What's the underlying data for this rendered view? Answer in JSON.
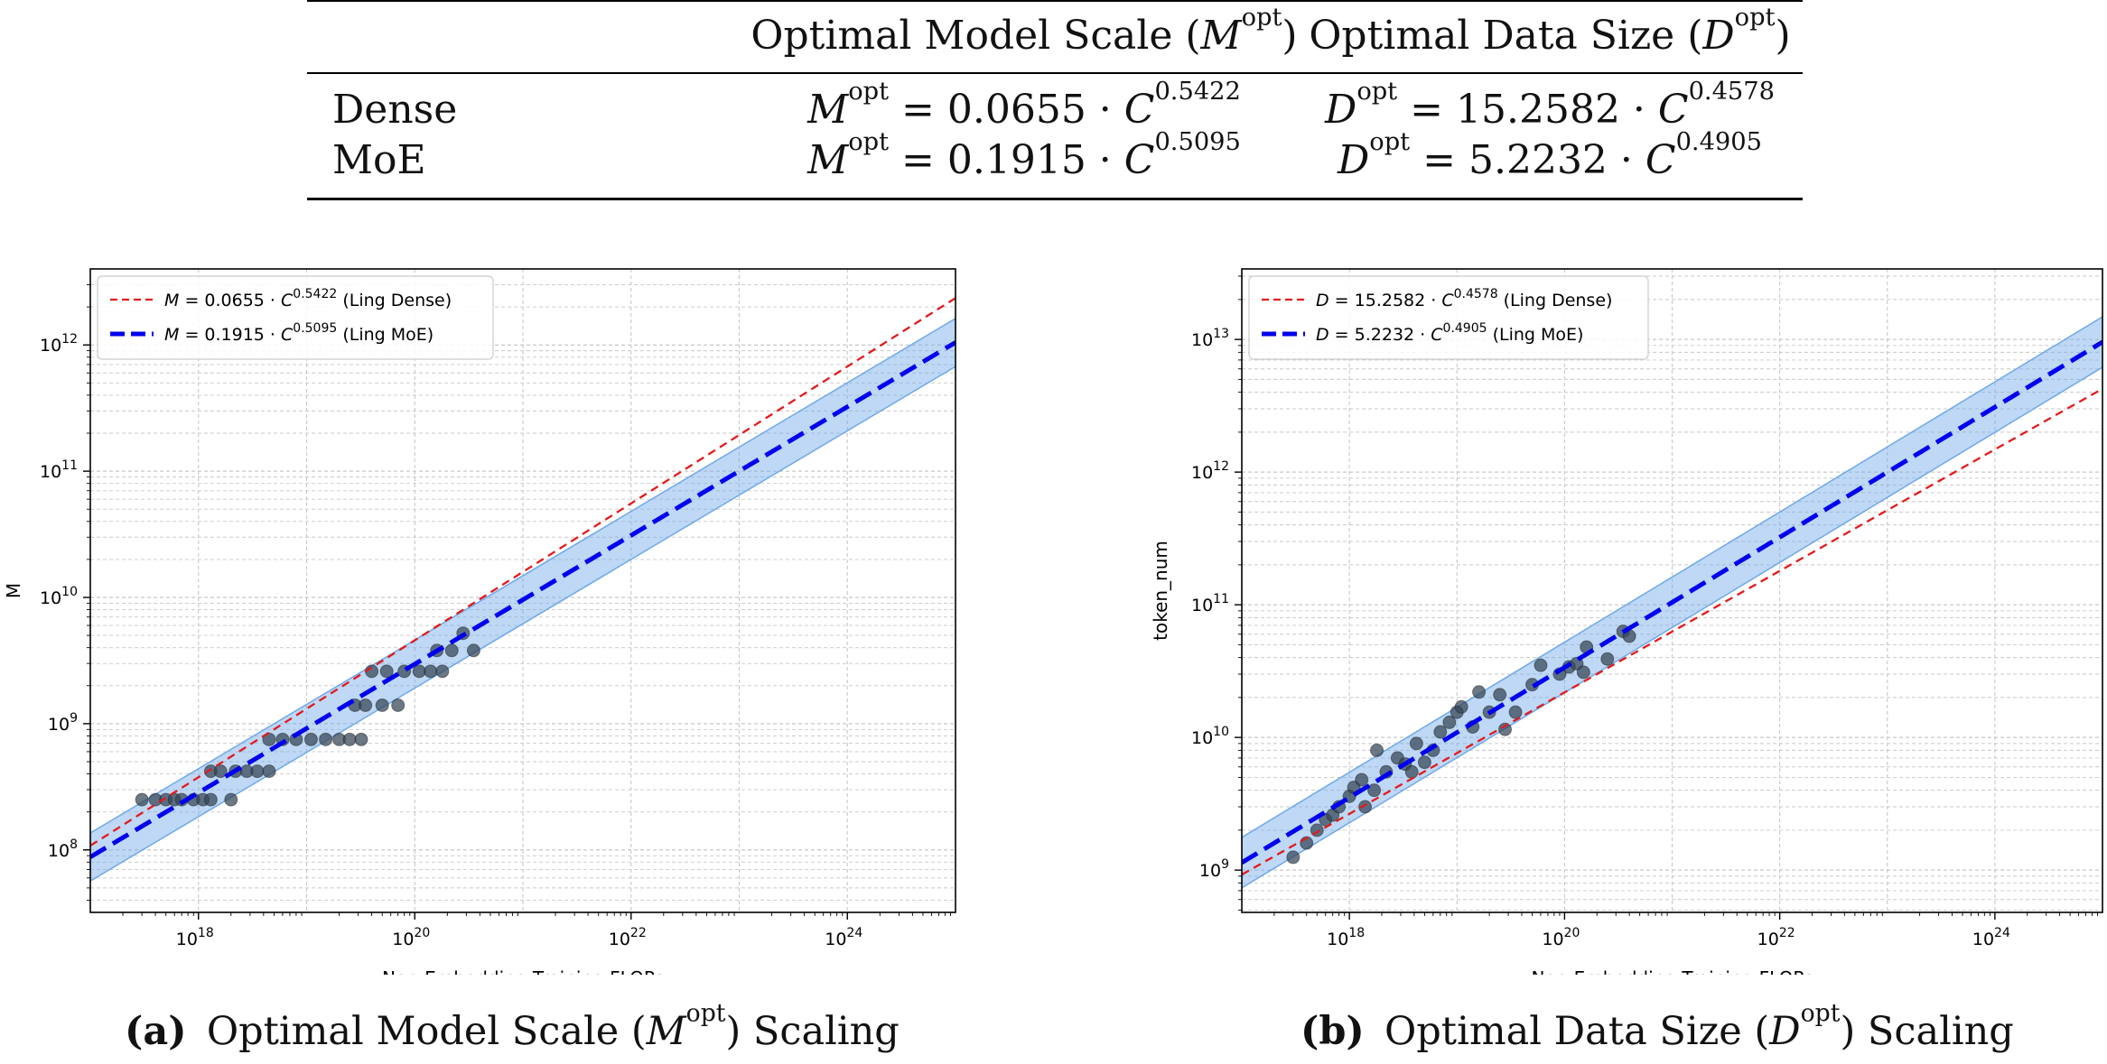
{
  "table": {
    "col_headers": [
      {
        "prefix": "Optimal Model Scale (",
        "sym": "M",
        "sup": "opt",
        "suffix": ")"
      },
      {
        "prefix": "Optimal Data Size (",
        "sym": "D",
        "sup": "opt",
        "suffix": ")"
      }
    ],
    "rows": [
      {
        "label": "Dense",
        "m": {
          "lhs": "M",
          "sup": "opt",
          "coef": " = 0.0655 · ",
          "base": "C",
          "exp": "0.5422"
        },
        "d": {
          "lhs": "D",
          "sup": "opt",
          "coef": " = 15.2582 · ",
          "base": "C",
          "exp": "0.4578"
        }
      },
      {
        "label": "MoE",
        "m": {
          "lhs": "M",
          "sup": "opt",
          "coef": " = 0.1915 · ",
          "base": "C",
          "exp": "0.5095"
        },
        "d": {
          "lhs": "D",
          "sup": "opt",
          "coef": " = 5.2232 · ",
          "base": "C",
          "exp": "0.4905"
        }
      }
    ]
  },
  "captions": [
    {
      "label": "(a)",
      "prefix": "Optimal Model Scale (",
      "sym": "M",
      "sup": "opt",
      "suffix": ") Scaling"
    },
    {
      "label": "(b)",
      "prefix": "Optimal Data Size (",
      "sym": "D",
      "sup": "opt",
      "suffix": ") Scaling"
    }
  ],
  "chart_data": [
    {
      "type": "line",
      "x_scale": "log",
      "y_scale": "log",
      "xlabel": "Non-Embedding Training FLOPs",
      "ylabel": "M",
      "xlim": [
        1e+17,
        1e+25
      ],
      "ylim": [
        32000000.0,
        4000000000000.0
      ],
      "xticks": [
        1e+18,
        1e+20,
        1e+22,
        1e+24
      ],
      "xtick_labels": [
        {
          "base": "10",
          "exp": "18"
        },
        {
          "base": "10",
          "exp": "20"
        },
        {
          "base": "10",
          "exp": "22"
        },
        {
          "base": "10",
          "exp": "24"
        }
      ],
      "yticks": [
        100000000.0,
        1000000000.0,
        10000000000.0,
        100000000000.0,
        1000000000000.0
      ],
      "ytick_labels": [
        {
          "base": "10",
          "exp": "8"
        },
        {
          "base": "10",
          "exp": "9"
        },
        {
          "base": "10",
          "exp": "10"
        },
        {
          "base": "10",
          "exp": "11"
        },
        {
          "base": "10",
          "exp": "12"
        }
      ],
      "grid": true,
      "legend_position": "top-left",
      "series": [
        {
          "name": "Ling Dense",
          "kind": "fit",
          "coef": 0.0655,
          "exp": 0.5422,
          "color": "#e31a1c",
          "dash": "dashed-thin",
          "legend": {
            "sym": "M",
            "eq": " = 0.0655 · ",
            "base": "C",
            "exp": "0.5422",
            "tail": " (Ling Dense)"
          }
        },
        {
          "name": "Ling MoE",
          "kind": "fit",
          "coef": 0.1915,
          "exp": 0.5095,
          "color": "#0000ee",
          "dash": "dashed-thick",
          "band_factor": 1.55,
          "band_color": "#6fa8e8",
          "legend": {
            "sym": "M",
            "eq": " = 0.1915 · ",
            "base": "C",
            "exp": "0.5095",
            "tail": " (Ling MoE)"
          }
        }
      ],
      "points": [
        [
          3e+17,
          250000000.0
        ],
        [
          4e+17,
          250000000.0
        ],
        [
          5e+17,
          250000000.0
        ],
        [
          6e+17,
          250000000.0
        ],
        [
          7e+17,
          250000000.0
        ],
        [
          9e+17,
          250000000.0
        ],
        [
          1.1e+18,
          250000000.0
        ],
        [
          1.3e+18,
          250000000.0
        ],
        [
          2e+18,
          250000000.0
        ],
        [
          1.3e+18,
          420000000.0
        ],
        [
          1.6e+18,
          420000000.0
        ],
        [
          2.2e+18,
          420000000.0
        ],
        [
          2.8e+18,
          420000000.0
        ],
        [
          3.5e+18,
          420000000.0
        ],
        [
          4.5e+18,
          420000000.0
        ],
        [
          4.5e+18,
          750000000.0
        ],
        [
          6e+18,
          750000000.0
        ],
        [
          8e+18,
          750000000.0
        ],
        [
          1.1e+19,
          750000000.0
        ],
        [
          1.5e+19,
          750000000.0
        ],
        [
          2e+19,
          750000000.0
        ],
        [
          2.5e+19,
          750000000.0
        ],
        [
          3.2e+19,
          750000000.0
        ],
        [
          2.8e+19,
          1400000000.0
        ],
        [
          3.5e+19,
          1400000000.0
        ],
        [
          5e+19,
          1400000000.0
        ],
        [
          7e+19,
          1400000000.0
        ],
        [
          4e+19,
          2600000000.0
        ],
        [
          5.5e+19,
          2600000000.0
        ],
        [
          8e+19,
          2600000000.0
        ],
        [
          1.1e+20,
          2600000000.0
        ],
        [
          1.4e+20,
          2600000000.0
        ],
        [
          1.8e+20,
          2600000000.0
        ],
        [
          1.6e+20,
          3800000000.0
        ],
        [
          2.2e+20,
          3800000000.0
        ],
        [
          3.5e+20,
          3800000000.0
        ],
        [
          2.8e+20,
          5200000000.0
        ]
      ]
    },
    {
      "type": "line",
      "x_scale": "log",
      "y_scale": "log",
      "xlabel": "Non-Embedding Training FLOPs",
      "ylabel": "token_num",
      "xlim": [
        1e+17,
        1e+25
      ],
      "ylim": [
        480000000.0,
        34000000000000.0
      ],
      "xticks": [
        1e+18,
        1e+20,
        1e+22,
        1e+24
      ],
      "xtick_labels": [
        {
          "base": "10",
          "exp": "18"
        },
        {
          "base": "10",
          "exp": "20"
        },
        {
          "base": "10",
          "exp": "22"
        },
        {
          "base": "10",
          "exp": "24"
        }
      ],
      "yticks": [
        1000000000.0,
        10000000000.0,
        100000000000.0,
        1000000000000.0,
        10000000000000.0
      ],
      "ytick_labels": [
        {
          "base": "10",
          "exp": "9"
        },
        {
          "base": "10",
          "exp": "10"
        },
        {
          "base": "10",
          "exp": "11"
        },
        {
          "base": "10",
          "exp": "12"
        },
        {
          "base": "10",
          "exp": "13"
        }
      ],
      "grid": true,
      "legend_position": "top-left",
      "series": [
        {
          "name": "Ling Dense",
          "kind": "fit",
          "coef": 15.2582,
          "exp": 0.4578,
          "color": "#e31a1c",
          "dash": "dashed-thin",
          "legend": {
            "sym": "D",
            "eq": " = 15.2582 · ",
            "base": "C",
            "exp": "0.4578",
            "tail": " (Ling Dense)"
          }
        },
        {
          "name": "Ling MoE",
          "kind": "fit",
          "coef": 5.2232,
          "exp": 0.4905,
          "color": "#0000ee",
          "dash": "dashed-thick",
          "band_factor": 1.55,
          "band_color": "#6fa8e8",
          "legend": {
            "sym": "D",
            "eq": " = 5.2232 · ",
            "base": "C",
            "exp": "0.4905",
            "tail": " (Ling MoE)"
          }
        }
      ],
      "points": [
        [
          3e+17,
          1250000000.0
        ],
        [
          4e+17,
          1600000000.0
        ],
        [
          5e+17,
          2000000000.0
        ],
        [
          6e+17,
          2400000000.0
        ],
        [
          7e+17,
          2600000000.0
        ],
        [
          8e+17,
          3000000000.0
        ],
        [
          1e+18,
          3600000000.0
        ],
        [
          1.1e+18,
          4200000000.0
        ],
        [
          1.3e+18,
          4800000000.0
        ],
        [
          1.4e+18,
          3000000000.0
        ],
        [
          1.7e+18,
          4000000000.0
        ],
        [
          1.8e+18,
          8000000000.0
        ],
        [
          2.2e+18,
          5500000000.0
        ],
        [
          2.8e+18,
          7000000000.0
        ],
        [
          3.3e+18,
          6300000000.0
        ],
        [
          3.8e+18,
          5500000000.0
        ],
        [
          4.2e+18,
          9000000000.0
        ],
        [
          5e+18,
          6500000000.0
        ],
        [
          6e+18,
          8000000000.0
        ],
        [
          7e+18,
          11000000000.0
        ],
        [
          8.5e+18,
          13000000000.0
        ],
        [
          1e+19,
          15500000000.0
        ],
        [
          1.1e+19,
          17000000000.0
        ],
        [
          1.4e+19,
          12000000000.0
        ],
        [
          1.6e+19,
          22000000000.0
        ],
        [
          2e+19,
          15500000000.0
        ],
        [
          2.5e+19,
          21000000000.0
        ],
        [
          2.8e+19,
          11500000000.0
        ],
        [
          3.5e+19,
          15500000000.0
        ],
        [
          5e+19,
          25000000000.0
        ],
        [
          6e+19,
          35000000000.0
        ],
        [
          9e+19,
          30000000000.0
        ],
        [
          1.1e+20,
          34000000000.0
        ],
        [
          1.3e+20,
          36000000000.0
        ],
        [
          1.5e+20,
          31000000000.0
        ],
        [
          1.6e+20,
          48000000000.0
        ],
        [
          2.5e+20,
          39000000000.0
        ],
        [
          3.5e+20,
          63000000000.0
        ],
        [
          4e+20,
          58000000000.0
        ]
      ]
    }
  ]
}
